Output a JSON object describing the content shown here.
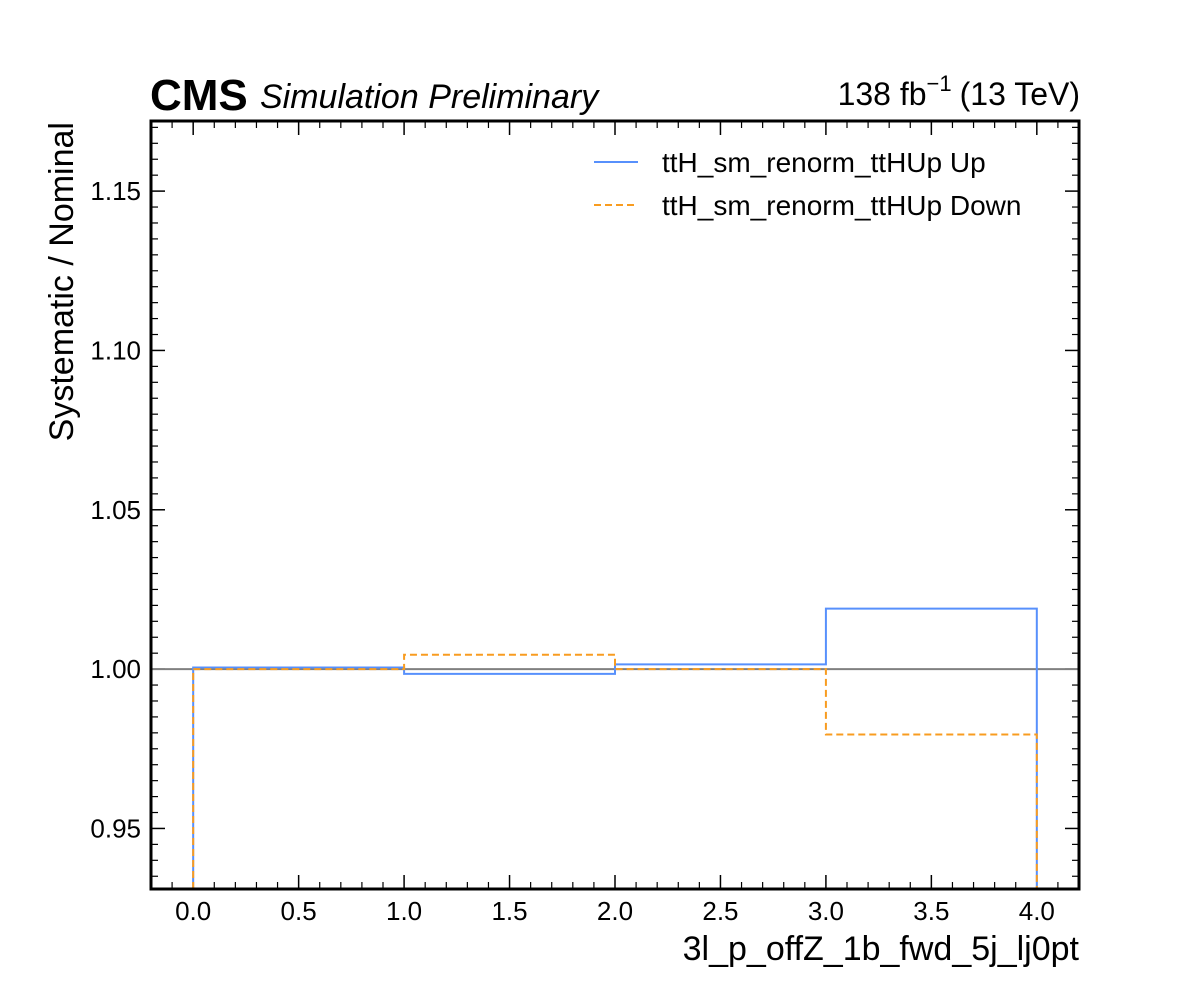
{
  "header": {
    "experiment": "CMS",
    "status": "Simulation Preliminary",
    "lumi_value": "138 fb",
    "lumi_exponent": "−1",
    "lumi_energy": "(13 TeV)"
  },
  "chart_data": {
    "type": "line",
    "step": "post",
    "xlabel": "3l_p_offZ_1b_fwd_5j_lj0pt",
    "ylabel": "Systematic / Nominal",
    "xlim": [
      -0.2,
      4.2
    ],
    "ylim": [
      0.931,
      1.172
    ],
    "xticks": [
      0.0,
      0.5,
      1.0,
      1.5,
      2.0,
      2.5,
      3.0,
      3.5,
      4.0
    ],
    "xtick_labels": [
      "0.0",
      "0.5",
      "1.0",
      "1.5",
      "2.0",
      "2.5",
      "3.0",
      "3.5",
      "4.0"
    ],
    "yticks": [
      0.95,
      1.0,
      1.05,
      1.1,
      1.15
    ],
    "ytick_labels": [
      "0.95",
      "1.00",
      "1.05",
      "1.10",
      "1.15"
    ],
    "reference_line": 1.0,
    "bin_edges": [
      0,
      1,
      2,
      3,
      4
    ],
    "legend_position": "top-right",
    "series": [
      {
        "name": "ttH_sm_renorm_ttHUp Up",
        "color": "#5790fc",
        "dash": "solid",
        "values": [
          1.0005,
          0.9985,
          1.0015,
          1.019
        ]
      },
      {
        "name": "ttH_sm_renorm_ttHUp Down",
        "color": "#f89c20",
        "dash": "dashed",
        "values": [
          1.0,
          1.0045,
          1.0,
          0.9795
        ]
      }
    ],
    "grid": false
  }
}
